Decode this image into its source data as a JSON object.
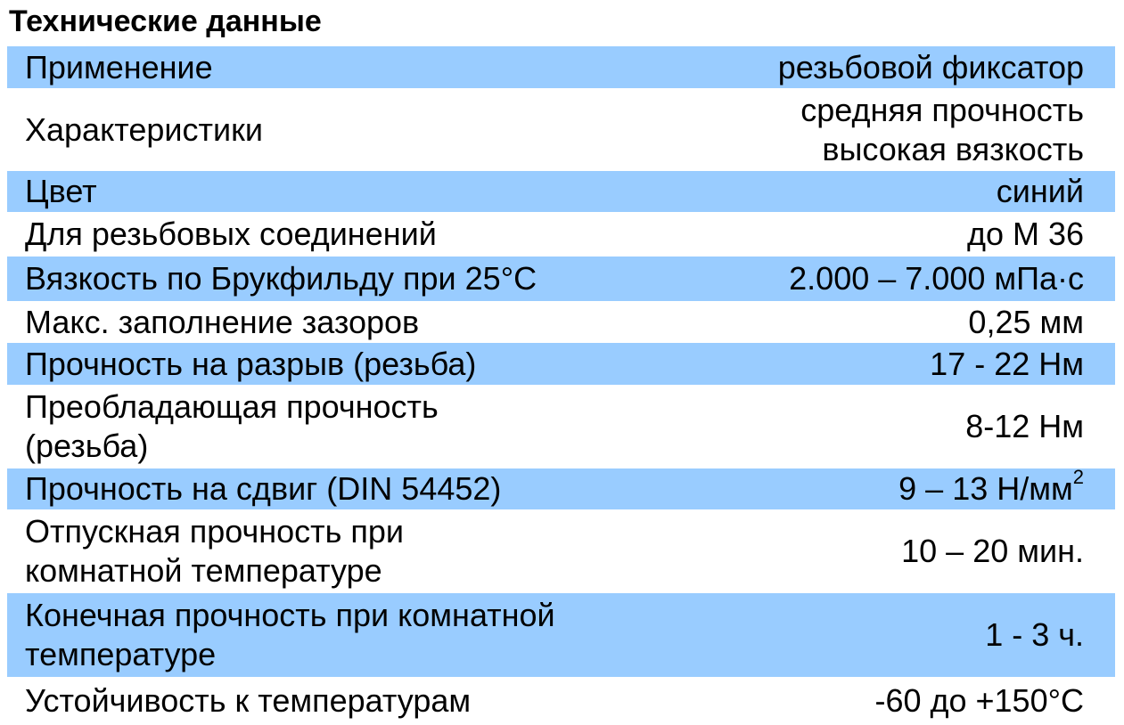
{
  "title": "Технические данные",
  "accent_color": "#99ccff",
  "rows": [
    {
      "label": "Применение",
      "value": [
        "резьбовой фиксатор"
      ]
    },
    {
      "label": "Характеристики",
      "value": [
        "средняя прочность",
        "высокая вязкость"
      ]
    },
    {
      "label": "Цвет",
      "value": [
        "синий"
      ]
    },
    {
      "label": "Для резьбовых соединений",
      "value": [
        "до М 36"
      ]
    },
    {
      "label": "Вязкость по Брукфильду при 25°C",
      "value": [
        "2.000 – 7.000 мПа·с"
      ]
    },
    {
      "label": "Макс. заполнение зазоров",
      "value": [
        "0,25 мм"
      ]
    },
    {
      "label": "Прочность на разрыв (резьба)",
      "value": [
        "17 - 22 Нм"
      ]
    },
    {
      "label": "Преобладающая прочность (резьба)",
      "value": [
        "8-12 Нм"
      ]
    },
    {
      "label": "Прочность на сдвиг (DIN 54452)",
      "value": [
        "9 – 13 Н/мм"
      ],
      "value_sup": "2"
    },
    {
      "label": "Отпускная прочность при комнатной температуре",
      "value": [
        "10 – 20 мин."
      ]
    },
    {
      "label": "Конечная прочность при комнатной температуре",
      "value": [
        "1 - 3 ч."
      ]
    },
    {
      "label": "Устойчивость к температурам",
      "value": [
        "-60 до +150°C"
      ]
    }
  ]
}
